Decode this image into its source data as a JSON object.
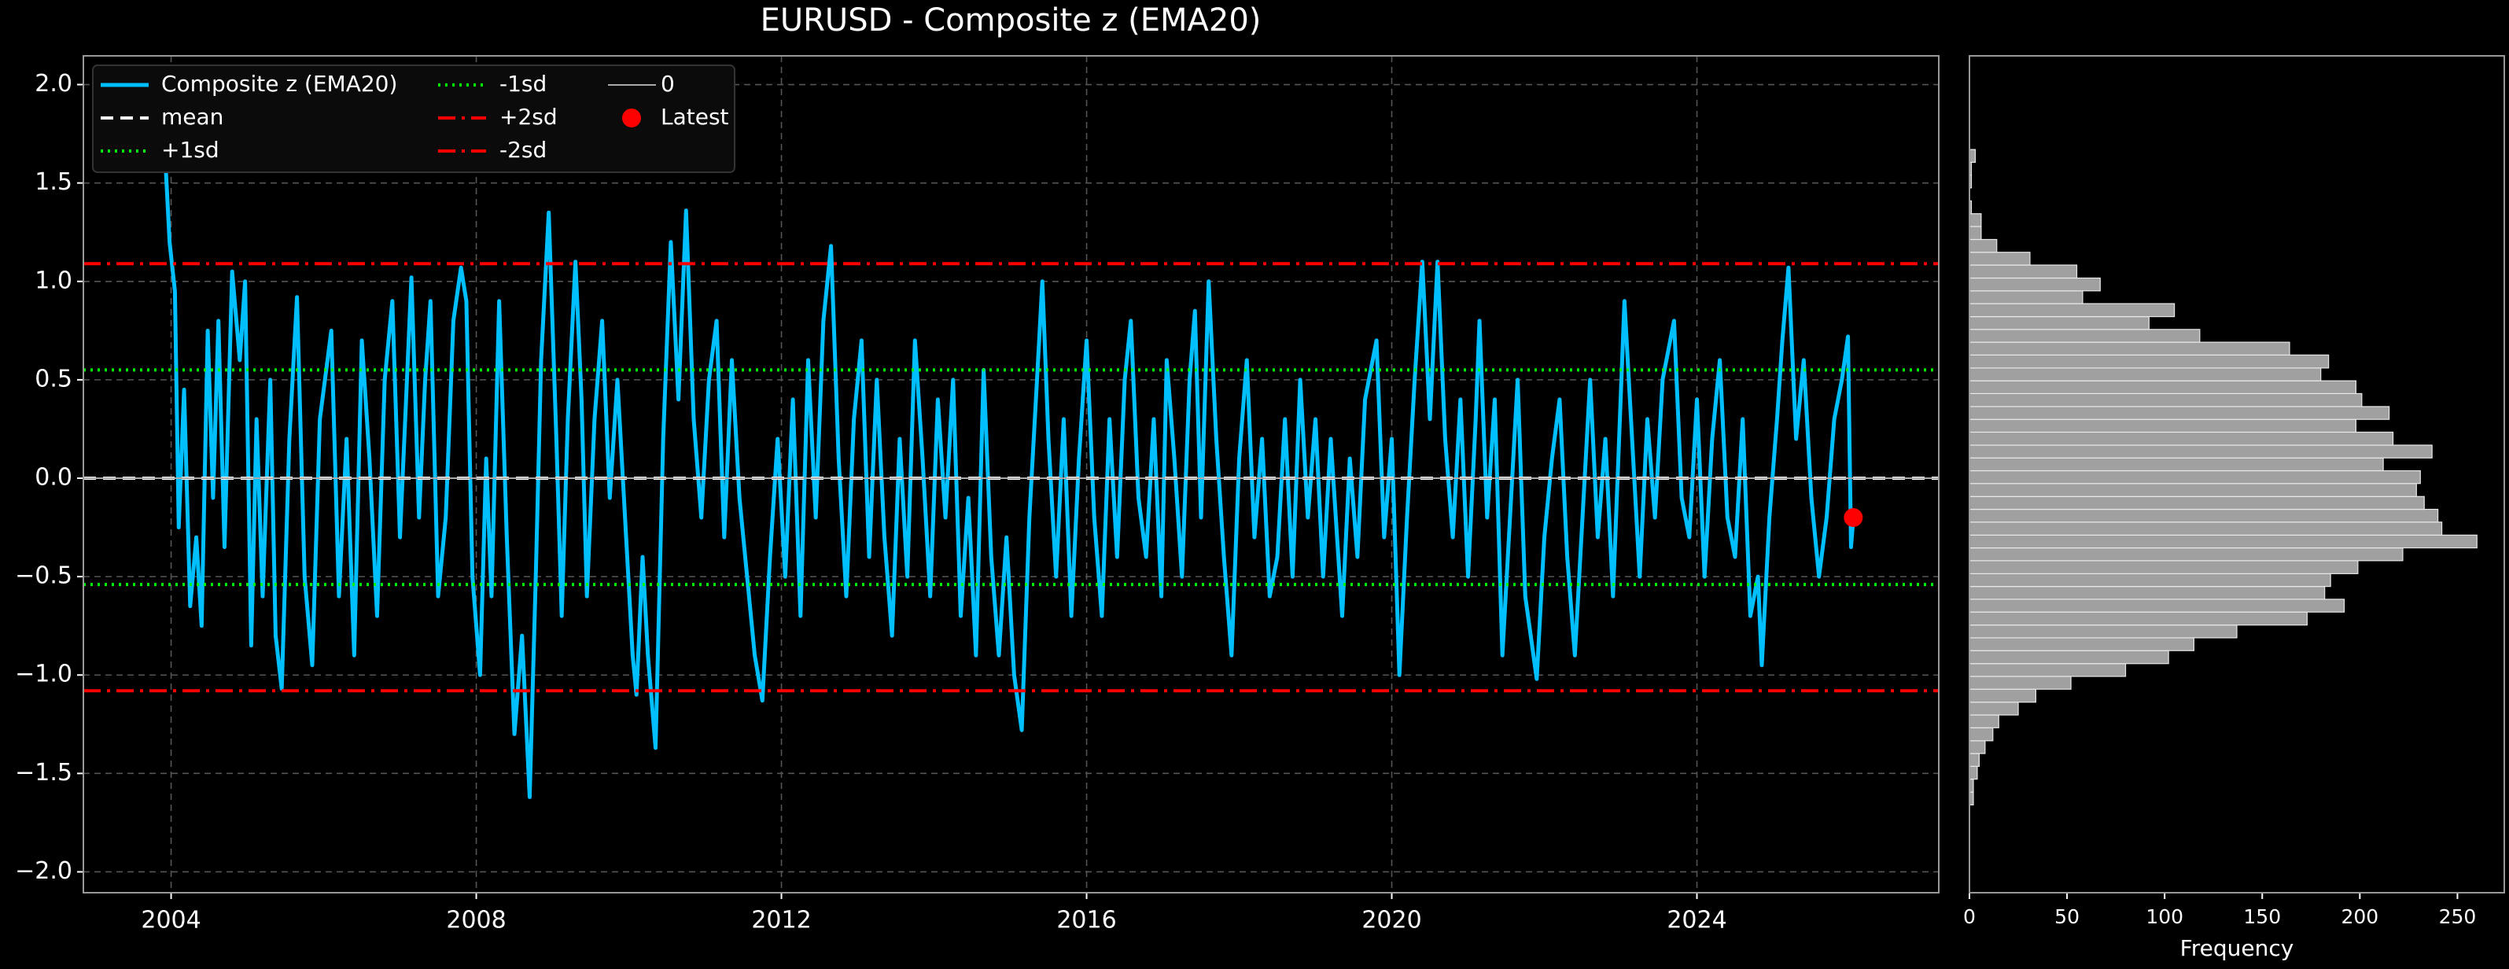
{
  "chart_data": [
    {
      "type": "line",
      "title": "EURUSD - Composite z (EMA20)",
      "x": [
        2003.92,
        2003.98,
        2004.05,
        2004.1,
        2004.17,
        2004.25,
        2004.33,
        2004.4,
        2004.48,
        2004.55,
        2004.62,
        2004.7,
        2004.8,
        2004.9,
        2004.97,
        2005.05,
        2005.12,
        2005.2,
        2005.3,
        2005.37,
        2005.45,
        2005.55,
        2005.65,
        2005.75,
        2005.85,
        2005.95,
        2006.1,
        2006.2,
        2006.3,
        2006.4,
        2006.5,
        2006.6,
        2006.7,
        2006.8,
        2006.9,
        2007.0,
        2007.08,
        2007.15,
        2007.25,
        2007.33,
        2007.4,
        2007.5,
        2007.6,
        2007.7,
        2007.8,
        2007.87,
        2007.95,
        2008.05,
        2008.13,
        2008.2,
        2008.3,
        2008.4,
        2008.5,
        2008.6,
        2008.7,
        2008.78,
        2008.85,
        2008.95,
        2009.05,
        2009.12,
        2009.2,
        2009.3,
        2009.38,
        2009.45,
        2009.55,
        2009.65,
        2009.75,
        2009.85,
        2009.95,
        2010.05,
        2010.1,
        2010.18,
        2010.25,
        2010.35,
        2010.45,
        2010.55,
        2010.65,
        2010.75,
        2010.85,
        2010.95,
        2011.05,
        2011.15,
        2011.25,
        2011.35,
        2011.45,
        2011.55,
        2011.65,
        2011.75,
        2011.85,
        2011.95,
        2012.05,
        2012.15,
        2012.25,
        2012.35,
        2012.45,
        2012.55,
        2012.65,
        2012.75,
        2012.85,
        2012.95,
        2013.05,
        2013.15,
        2013.25,
        2013.35,
        2013.45,
        2013.55,
        2013.65,
        2013.75,
        2013.85,
        2013.95,
        2014.05,
        2014.15,
        2014.25,
        2014.35,
        2014.45,
        2014.55,
        2014.65,
        2014.75,
        2014.85,
        2014.95,
        2015.05,
        2015.15,
        2015.25,
        2015.35,
        2015.42,
        2015.5,
        2015.6,
        2015.7,
        2015.8,
        2015.9,
        2016.0,
        2016.1,
        2016.2,
        2016.3,
        2016.4,
        2016.5,
        2016.58,
        2016.68,
        2016.78,
        2016.88,
        2016.98,
        2017.05,
        2017.15,
        2017.25,
        2017.35,
        2017.42,
        2017.5,
        2017.6,
        2017.7,
        2017.8,
        2017.9,
        2018.0,
        2018.1,
        2018.2,
        2018.3,
        2018.4,
        2018.5,
        2018.6,
        2018.7,
        2018.8,
        2018.9,
        2019.0,
        2019.1,
        2019.2,
        2019.35,
        2019.45,
        2019.55,
        2019.65,
        2019.8,
        2019.9,
        2020.0,
        2020.1,
        2020.2,
        2020.3,
        2020.4,
        2020.5,
        2020.6,
        2020.7,
        2020.8,
        2020.9,
        2021.0,
        2021.1,
        2021.15,
        2021.25,
        2021.35,
        2021.45,
        2021.55,
        2021.65,
        2021.75,
        2021.9,
        2022.0,
        2022.1,
        2022.2,
        2022.3,
        2022.4,
        2022.5,
        2022.6,
        2022.7,
        2022.8,
        2022.9,
        2023.05,
        2023.15,
        2023.25,
        2023.35,
        2023.45,
        2023.55,
        2023.7,
        2023.8,
        2023.9,
        2024.0,
        2024.1,
        2024.2,
        2024.3,
        2024.4,
        2024.5,
        2024.6,
        2024.7,
        2024.8,
        2024.85,
        2024.95,
        2025.05,
        2025.12,
        2025.2,
        2025.3,
        2025.4,
        2025.5,
        2025.6,
        2025.7,
        2025.8,
        2025.9,
        2025.98,
        2026.02,
        2026.05
      ],
      "series": [
        {
          "name": "Composite z (EMA20)",
          "color": "#00bfff",
          "values": [
            1.65,
            1.2,
            0.95,
            -0.25,
            0.45,
            -0.65,
            -0.3,
            -0.75,
            0.75,
            -0.1,
            0.8,
            -0.35,
            1.05,
            0.6,
            1.0,
            -0.85,
            0.3,
            -0.6,
            0.5,
            -0.8,
            -1.07,
            0.2,
            0.92,
            -0.5,
            -0.95,
            0.3,
            0.75,
            -0.6,
            0.2,
            -0.9,
            0.7,
            0.1,
            -0.7,
            0.5,
            0.9,
            -0.3,
            0.4,
            1.02,
            -0.2,
            0.5,
            0.9,
            -0.6,
            -0.2,
            0.8,
            1.07,
            0.9,
            -0.5,
            -1.0,
            0.1,
            -0.6,
            0.9,
            -0.3,
            -1.3,
            -0.8,
            -1.62,
            -0.5,
            0.6,
            1.35,
            0.2,
            -0.7,
            0.3,
            1.1,
            0.4,
            -0.6,
            0.3,
            0.8,
            -0.1,
            0.5,
            -0.2,
            -0.9,
            -1.1,
            -0.4,
            -0.9,
            -1.37,
            0.2,
            1.2,
            0.4,
            1.36,
            0.3,
            -0.2,
            0.5,
            0.8,
            -0.3,
            0.6,
            -0.1,
            -0.5,
            -0.9,
            -1.13,
            -0.4,
            0.2,
            -0.5,
            0.4,
            -0.7,
            0.6,
            -0.2,
            0.8,
            1.18,
            0.1,
            -0.6,
            0.3,
            0.7,
            -0.4,
            0.5,
            -0.3,
            -0.8,
            0.2,
            -0.5,
            0.7,
            0.1,
            -0.6,
            0.4,
            -0.2,
            0.5,
            -0.7,
            -0.1,
            -0.9,
            0.55,
            -0.4,
            -0.9,
            -0.3,
            -1.0,
            -1.28,
            -0.2,
            0.5,
            1.0,
            0.2,
            -0.5,
            0.3,
            -0.7,
            0.1,
            0.7,
            -0.2,
            -0.7,
            0.3,
            -0.4,
            0.5,
            0.8,
            -0.1,
            -0.4,
            0.3,
            -0.6,
            0.6,
            0.1,
            -0.5,
            0.5,
            0.85,
            -0.2,
            1.0,
            0.2,
            -0.4,
            -0.9,
            0.1,
            0.6,
            -0.3,
            0.2,
            -0.6,
            -0.4,
            0.3,
            -0.5,
            0.5,
            -0.2,
            0.3,
            -0.5,
            0.2,
            -0.7,
            0.1,
            -0.4,
            0.4,
            0.7,
            -0.3,
            0.2,
            -1.0,
            -0.2,
            0.5,
            1.1,
            0.3,
            1.1,
            0.2,
            -0.3,
            0.4,
            -0.5,
            0.3,
            0.8,
            -0.2,
            0.4,
            -0.9,
            -0.2,
            0.5,
            -0.6,
            -1.02,
            -0.3,
            0.1,
            0.4,
            -0.4,
            -0.9,
            -0.2,
            0.5,
            -0.3,
            0.2,
            -0.6,
            0.9,
            0.2,
            -0.5,
            0.3,
            -0.2,
            0.5,
            0.8,
            -0.1,
            -0.3,
            0.4,
            -0.5,
            0.2,
            0.6,
            -0.2,
            -0.4,
            0.3,
            -0.7,
            -0.5,
            -0.95,
            -0.2,
            0.3,
            0.7,
            1.07,
            0.2,
            0.6,
            -0.1,
            -0.5,
            -0.2,
            0.3,
            0.5,
            0.72,
            -0.35,
            -0.2
          ]
        }
      ],
      "hlines": [
        {
          "name": "mean",
          "value": 0.0,
          "color": "#ffffff",
          "style": "dashed"
        },
        {
          "name": "+1sd",
          "value": 0.55,
          "color": "#00ff00",
          "style": "dotted"
        },
        {
          "name": "-1sd",
          "value": -0.54,
          "color": "#00ff00",
          "style": "dotted"
        },
        {
          "name": "+2sd",
          "value": 1.09,
          "color": "#ff0000",
          "style": "dashdot"
        },
        {
          "name": "-2sd",
          "value": -1.08,
          "color": "#ff0000",
          "style": "dashdot"
        },
        {
          "name": "0",
          "value": 0,
          "color": "#aaaaaa",
          "style": "solid"
        }
      ],
      "latest": {
        "name": "Latest",
        "x": 2026.05,
        "y": -0.2,
        "color": "#ff0000"
      },
      "xlim": [
        2002.85,
        2027.17
      ],
      "xticks": [
        2004,
        2008,
        2012,
        2016,
        2020,
        2024
      ],
      "ylim": [
        -2.106,
        2.146
      ],
      "yticks": [
        {
          "value": -2,
          "label": "−2.0"
        },
        {
          "value": -1.5,
          "label": "−1.5"
        },
        {
          "value": -1,
          "label": "−1.0"
        },
        {
          "value": -0.5,
          "label": "−0.5"
        },
        {
          "value": 0,
          "label": "0.0"
        },
        {
          "value": 0.5,
          "label": "0.5"
        },
        {
          "value": 1,
          "label": "1.0"
        },
        {
          "value": 1.5,
          "label": "1.5"
        },
        {
          "value": 2,
          "label": "2.0"
        }
      ],
      "grid": true,
      "legend": "upper left"
    },
    {
      "type": "histogram",
      "orientation": "horizontal",
      "xlabel": "Frequency",
      "color": "#a0a0a0",
      "bins": [
        -1.66,
        -1.595,
        -1.529,
        -1.464,
        -1.399,
        -1.334,
        -1.268,
        -1.203,
        -1.138,
        -1.072,
        -1.007,
        -0.942,
        -0.876,
        -0.811,
        -0.746,
        -0.68,
        -0.615,
        -0.55,
        -0.485,
        -0.419,
        -0.354,
        -0.289,
        -0.223,
        -0.158,
        -0.093,
        -0.027,
        0.038,
        0.103,
        0.168,
        0.234,
        0.299,
        0.364,
        0.43,
        0.495,
        0.56,
        0.626,
        0.691,
        0.756,
        0.821,
        0.887,
        0.952,
        1.017,
        1.083,
        1.148,
        1.213,
        1.279,
        1.344,
        1.409,
        1.475,
        1.54,
        1.605,
        1.67
      ],
      "values": [
        2,
        2,
        4,
        5,
        8,
        12,
        15,
        25,
        34,
        52,
        80,
        102,
        115,
        137,
        173,
        192,
        182,
        185,
        199,
        222,
        260,
        242,
        240,
        233,
        229,
        231,
        212,
        237,
        217,
        198,
        215,
        201,
        198,
        180,
        184,
        164,
        118,
        92,
        105,
        58,
        67,
        55,
        31,
        14,
        6,
        6,
        1,
        0,
        1,
        1,
        3
      ],
      "xlim": [
        0,
        274
      ],
      "xticks": [
        0,
        50,
        100,
        150,
        200,
        250
      ],
      "ylim": [
        -2.106,
        2.146
      ]
    }
  ]
}
